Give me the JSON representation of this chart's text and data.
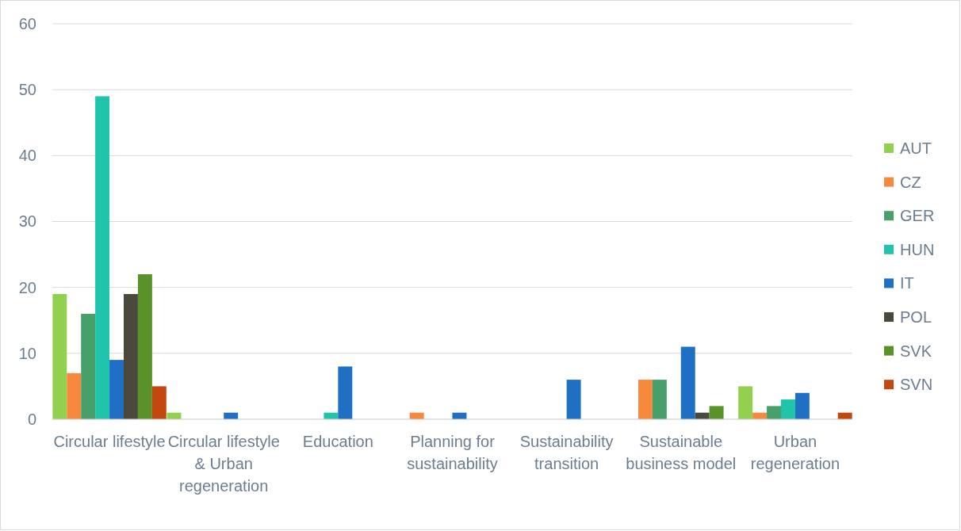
{
  "chart_data": {
    "type": "bar",
    "categories": [
      "Circular lifestyle",
      "Circular lifestyle & Urban regeneration",
      "Education",
      "Planning for sustainability",
      "Sustainability transition",
      "Sustainable business model",
      "Urban regeneration"
    ],
    "series": [
      {
        "name": "AUT",
        "color": "#92d050",
        "values": [
          19,
          1,
          0,
          0,
          0,
          0,
          5
        ]
      },
      {
        "name": "CZ",
        "color": "#f7893f",
        "values": [
          7,
          0,
          0,
          1,
          0,
          6,
          1
        ]
      },
      {
        "name": "GER",
        "color": "#47a06a",
        "values": [
          16,
          0,
          0,
          0,
          0,
          6,
          2
        ]
      },
      {
        "name": "HUN",
        "color": "#1fc4aa",
        "values": [
          49,
          0,
          1,
          0,
          0,
          0,
          3
        ]
      },
      {
        "name": "IT",
        "color": "#1f6fc4",
        "values": [
          9,
          1,
          8,
          1,
          6,
          11,
          4
        ]
      },
      {
        "name": "POL",
        "color": "#4a4a3c",
        "values": [
          19,
          0,
          0,
          0,
          0,
          1,
          0
        ]
      },
      {
        "name": "SVK",
        "color": "#5a9128",
        "values": [
          22,
          0,
          0,
          0,
          0,
          2,
          0
        ]
      },
      {
        "name": "SVN",
        "color": "#c2480f",
        "values": [
          5,
          0,
          0,
          0,
          0,
          0,
          1
        ]
      }
    ],
    "ylim": [
      0,
      60
    ],
    "yticks": [
      0,
      10,
      20,
      30,
      40,
      50,
      60
    ],
    "grid": "y",
    "legend": "right"
  }
}
